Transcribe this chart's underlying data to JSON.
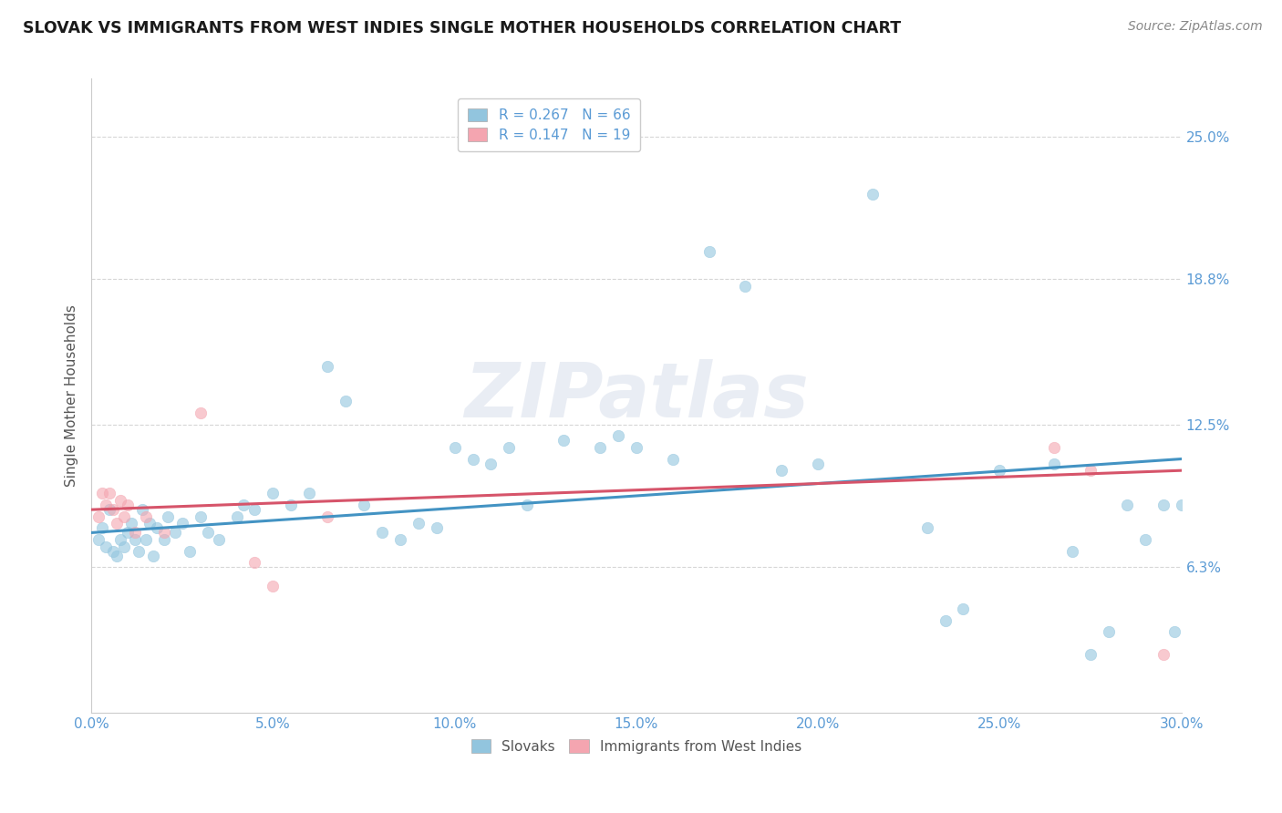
{
  "title": "SLOVAK VS IMMIGRANTS FROM WEST INDIES SINGLE MOTHER HOUSEHOLDS CORRELATION CHART",
  "source_text": "Source: ZipAtlas.com",
  "ylabel": "Single Mother Households",
  "xlabel_ticks": [
    "0.0%",
    "5.0%",
    "10.0%",
    "15.0%",
    "20.0%",
    "25.0%",
    "30.0%"
  ],
  "xlabel_vals": [
    0.0,
    5.0,
    10.0,
    15.0,
    20.0,
    25.0,
    30.0
  ],
  "ytick_labels": [
    "6.3%",
    "12.5%",
    "18.8%",
    "25.0%"
  ],
  "ytick_vals": [
    6.3,
    12.5,
    18.8,
    25.0
  ],
  "xmin": 0.0,
  "xmax": 30.0,
  "ymin": 0.0,
  "ymax": 27.5,
  "background_color": "#ffffff",
  "grid_color": "#cccccc",
  "watermark_text": "ZIPatlas",
  "legend_R1": "R = 0.267",
  "legend_N1": "N = 66",
  "legend_R2": "R = 0.147",
  "legend_N2": "N = 19",
  "blue_color": "#92c5de",
  "blue_line_color": "#4393c3",
  "pink_color": "#f4a5b0",
  "pink_line_color": "#d6546a",
  "blue_scatter": [
    [
      0.2,
      7.5
    ],
    [
      0.3,
      8.0
    ],
    [
      0.4,
      7.2
    ],
    [
      0.5,
      8.8
    ],
    [
      0.6,
      7.0
    ],
    [
      0.7,
      6.8
    ],
    [
      0.8,
      7.5
    ],
    [
      0.9,
      7.2
    ],
    [
      1.0,
      7.8
    ],
    [
      1.1,
      8.2
    ],
    [
      1.2,
      7.5
    ],
    [
      1.3,
      7.0
    ],
    [
      1.4,
      8.8
    ],
    [
      1.5,
      7.5
    ],
    [
      1.6,
      8.2
    ],
    [
      1.7,
      6.8
    ],
    [
      1.8,
      8.0
    ],
    [
      2.0,
      7.5
    ],
    [
      2.1,
      8.5
    ],
    [
      2.3,
      7.8
    ],
    [
      2.5,
      8.2
    ],
    [
      2.7,
      7.0
    ],
    [
      3.0,
      8.5
    ],
    [
      3.2,
      7.8
    ],
    [
      3.5,
      7.5
    ],
    [
      4.0,
      8.5
    ],
    [
      4.2,
      9.0
    ],
    [
      4.5,
      8.8
    ],
    [
      5.0,
      9.5
    ],
    [
      5.5,
      9.0
    ],
    [
      6.0,
      9.5
    ],
    [
      6.5,
      15.0
    ],
    [
      7.0,
      13.5
    ],
    [
      7.5,
      9.0
    ],
    [
      8.0,
      7.8
    ],
    [
      8.5,
      7.5
    ],
    [
      9.0,
      8.2
    ],
    [
      9.5,
      8.0
    ],
    [
      10.0,
      11.5
    ],
    [
      10.5,
      11.0
    ],
    [
      11.0,
      10.8
    ],
    [
      11.5,
      11.5
    ],
    [
      12.0,
      9.0
    ],
    [
      13.0,
      11.8
    ],
    [
      14.0,
      11.5
    ],
    [
      14.5,
      12.0
    ],
    [
      15.0,
      11.5
    ],
    [
      16.0,
      11.0
    ],
    [
      17.0,
      20.0
    ],
    [
      18.0,
      18.5
    ],
    [
      19.0,
      10.5
    ],
    [
      20.0,
      10.8
    ],
    [
      21.5,
      22.5
    ],
    [
      23.0,
      8.0
    ],
    [
      23.5,
      4.0
    ],
    [
      24.0,
      4.5
    ],
    [
      25.0,
      10.5
    ],
    [
      26.5,
      10.8
    ],
    [
      27.0,
      7.0
    ],
    [
      27.5,
      2.5
    ],
    [
      28.0,
      3.5
    ],
    [
      28.5,
      9.0
    ],
    [
      29.0,
      7.5
    ],
    [
      29.5,
      9.0
    ],
    [
      29.8,
      3.5
    ],
    [
      30.0,
      9.0
    ]
  ],
  "pink_scatter": [
    [
      0.2,
      8.5
    ],
    [
      0.3,
      9.5
    ],
    [
      0.4,
      9.0
    ],
    [
      0.5,
      9.5
    ],
    [
      0.6,
      8.8
    ],
    [
      0.7,
      8.2
    ],
    [
      0.8,
      9.2
    ],
    [
      0.9,
      8.5
    ],
    [
      1.0,
      9.0
    ],
    [
      1.2,
      7.8
    ],
    [
      1.5,
      8.5
    ],
    [
      2.0,
      7.8
    ],
    [
      3.0,
      13.0
    ],
    [
      4.5,
      6.5
    ],
    [
      5.0,
      5.5
    ],
    [
      6.5,
      8.5
    ],
    [
      26.5,
      11.5
    ],
    [
      27.5,
      10.5
    ],
    [
      29.5,
      2.5
    ]
  ],
  "blue_line_y_start": 7.8,
  "blue_line_y_end": 11.0,
  "pink_line_y_start": 8.8,
  "pink_line_y_end": 10.5
}
